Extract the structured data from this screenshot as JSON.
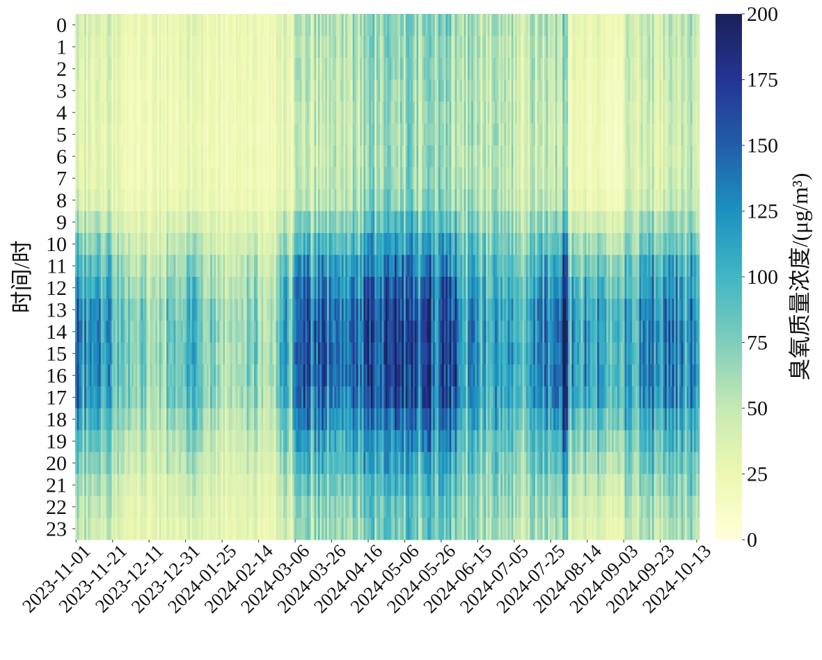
{
  "chart_data": {
    "type": "heatmap",
    "title": "",
    "ylabel": "时间/时",
    "colorbar_label": "臭氧质量浓度/(μg/m³)",
    "colormap": "YlGnBu",
    "color_stops": [
      "#ffffd9",
      "#edf8b1",
      "#c7e9b4",
      "#7fcdbb",
      "#41b6c4",
      "#1d91c0",
      "#225ea8",
      "#253494",
      "#1a2158"
    ],
    "vlim": [
      0,
      200
    ],
    "colorbar_ticks": [
      "0",
      "25",
      "50",
      "75",
      "100",
      "125",
      "150",
      "175",
      "200"
    ],
    "y_categories": [
      "0",
      "1",
      "2",
      "3",
      "4",
      "5",
      "6",
      "7",
      "8",
      "9",
      "10",
      "11",
      "12",
      "13",
      "14",
      "15",
      "16",
      "17",
      "18",
      "19",
      "20",
      "21",
      "22",
      "23"
    ],
    "n_columns": 342,
    "x_ticks": [
      {
        "col": 0,
        "label": "2023-11-01"
      },
      {
        "col": 20,
        "label": "2023-11-21"
      },
      {
        "col": 40,
        "label": "2023-12-11"
      },
      {
        "col": 60,
        "label": "2023-12-31"
      },
      {
        "col": 80,
        "label": "2024-01-25"
      },
      {
        "col": 100,
        "label": "2024-02-14"
      },
      {
        "col": 120,
        "label": "2024-03-06"
      },
      {
        "col": 140,
        "label": "2024-03-26"
      },
      {
        "col": 160,
        "label": "2024-04-16"
      },
      {
        "col": 180,
        "label": "2024-05-06"
      },
      {
        "col": 200,
        "label": "2024-05-26"
      },
      {
        "col": 220,
        "label": "2024-06-15"
      },
      {
        "col": 240,
        "label": "2024-07-05"
      },
      {
        "col": 260,
        "label": "2024-07-25"
      },
      {
        "col": 280,
        "label": "2024-08-14"
      },
      {
        "col": 300,
        "label": "2024-09-03"
      },
      {
        "col": 320,
        "label": "2024-09-23"
      },
      {
        "col": 340,
        "label": "2024-10-13"
      }
    ],
    "block_size_columns": 10,
    "block_daytime_peak": [
      130,
      120,
      90,
      80,
      70,
      85,
      90,
      80,
      60,
      80,
      60,
      110,
      160,
      150,
      150,
      150,
      160,
      175,
      180,
      170,
      160,
      120,
      100,
      110,
      100,
      130,
      180,
      120,
      110,
      90,
      120,
      130,
      140,
      120,
      120
    ],
    "block_night_base": [
      30,
      30,
      25,
      20,
      20,
      20,
      20,
      20,
      20,
      20,
      15,
      25,
      40,
      40,
      45,
      50,
      55,
      55,
      60,
      60,
      55,
      50,
      45,
      45,
      40,
      45,
      50,
      20,
      15,
      10,
      35,
      40,
      40,
      40,
      40
    ],
    "diurnal_profile": [
      0.12,
      0.1,
      0.08,
      0.06,
      0.05,
      0.04,
      0.04,
      0.05,
      0.1,
      0.3,
      0.5,
      0.7,
      0.85,
      0.97,
      1.0,
      1.0,
      1.0,
      0.95,
      0.78,
      0.62,
      0.5,
      0.36,
      0.27,
      0.2
    ]
  }
}
